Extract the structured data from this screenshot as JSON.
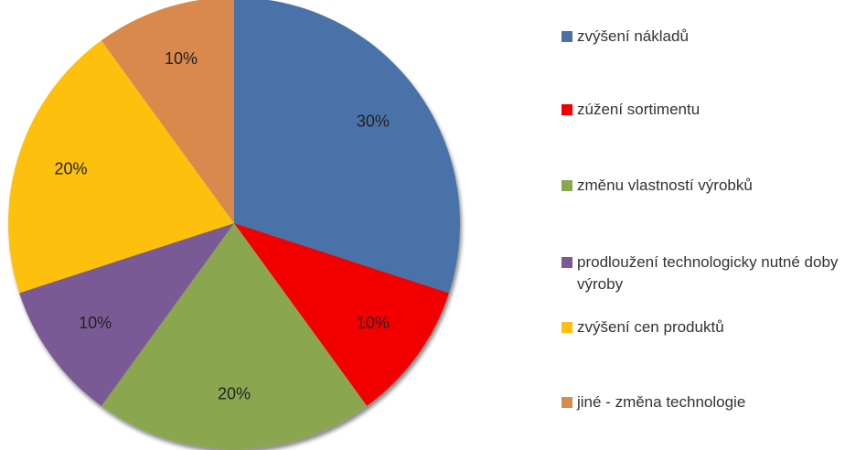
{
  "chart_data": {
    "type": "pie",
    "categories": [
      "zvýšení nákladů",
      "zúžení sortimentu",
      "změnu vlastností výrobků",
      "prodloužení technologicky nutné doby výroby",
      "zvýšení cen produktů",
      "jiné - změna technologie"
    ],
    "values": [
      30,
      10,
      20,
      10,
      20,
      10
    ],
    "value_labels": [
      "30%",
      "10%",
      "20%",
      "10%",
      "20%",
      "10%"
    ],
    "colors": [
      "#4a72a8",
      "#f20000",
      "#8aa650",
      "#7a5a94",
      "#fdc010",
      "#d8894c"
    ],
    "legend": "right"
  }
}
